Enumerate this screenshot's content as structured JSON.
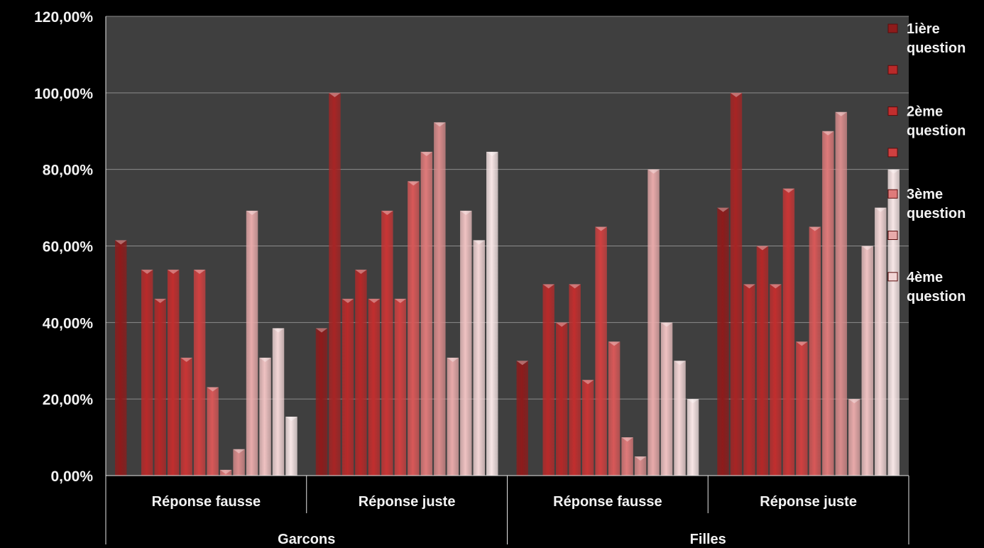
{
  "chart_data": {
    "type": "bar",
    "ylim": [
      0,
      1.2
    ],
    "y_ticks": [
      "0,00%",
      "20,00%",
      "40,00%",
      "60,00%",
      "80,00%",
      "100,00%",
      "120,00%"
    ],
    "groups": [
      {
        "label": "Garcons",
        "categories": [
          {
            "label": "Réponse  fausse",
            "values": [
              0.615,
              0,
              0.538,
              0.462,
              0.538,
              0.308,
              0.538,
              0.231,
              0.015,
              0.069,
              0.692,
              0.308,
              0.385,
              0.154
            ]
          },
          {
            "label": "Réponse juste",
            "values": [
              0.385,
              1.0,
              0.462,
              0.538,
              0.462,
              0.692,
              0.462,
              0.769,
              0.846,
              0.923,
              0.308,
              0.692,
              0.615,
              0.846
            ]
          }
        ]
      },
      {
        "label": "Filles",
        "categories": [
          {
            "label": "Réponse  fausse",
            "values": [
              0.3,
              0,
              0.5,
              0.4,
              0.5,
              0.25,
              0.65,
              0.35,
              0.1,
              0.05,
              0.8,
              0.4,
              0.3,
              0.2
            ]
          },
          {
            "label": "Réponse juste",
            "values": [
              0.7,
              1.0,
              0.5,
              0.6,
              0.5,
              0.75,
              0.35,
              0.65,
              0.9,
              0.95,
              0.2,
              0.6,
              0.7,
              0.8
            ]
          }
        ]
      }
    ],
    "legend": [
      "1ière question",
      "",
      "2ème question",
      "",
      "3ème question",
      "",
      "4ème question"
    ],
    "legend_placement": "right",
    "grid": true,
    "colors": {
      "page_background": "#000000",
      "plot_background": "#3f3f3f",
      "gridline": "#8c8c8c",
      "series": [
        "#8e1b1b",
        "#a82424",
        "#b92a2a",
        "#b52828",
        "#c22e2e",
        "#c93535",
        "#d04040",
        "#d85858",
        "#df7a7a",
        "#d98c8c",
        "#e8aaaa",
        "#efc2c2",
        "#f3d6d6",
        "#f8e6e6"
      ]
    }
  }
}
